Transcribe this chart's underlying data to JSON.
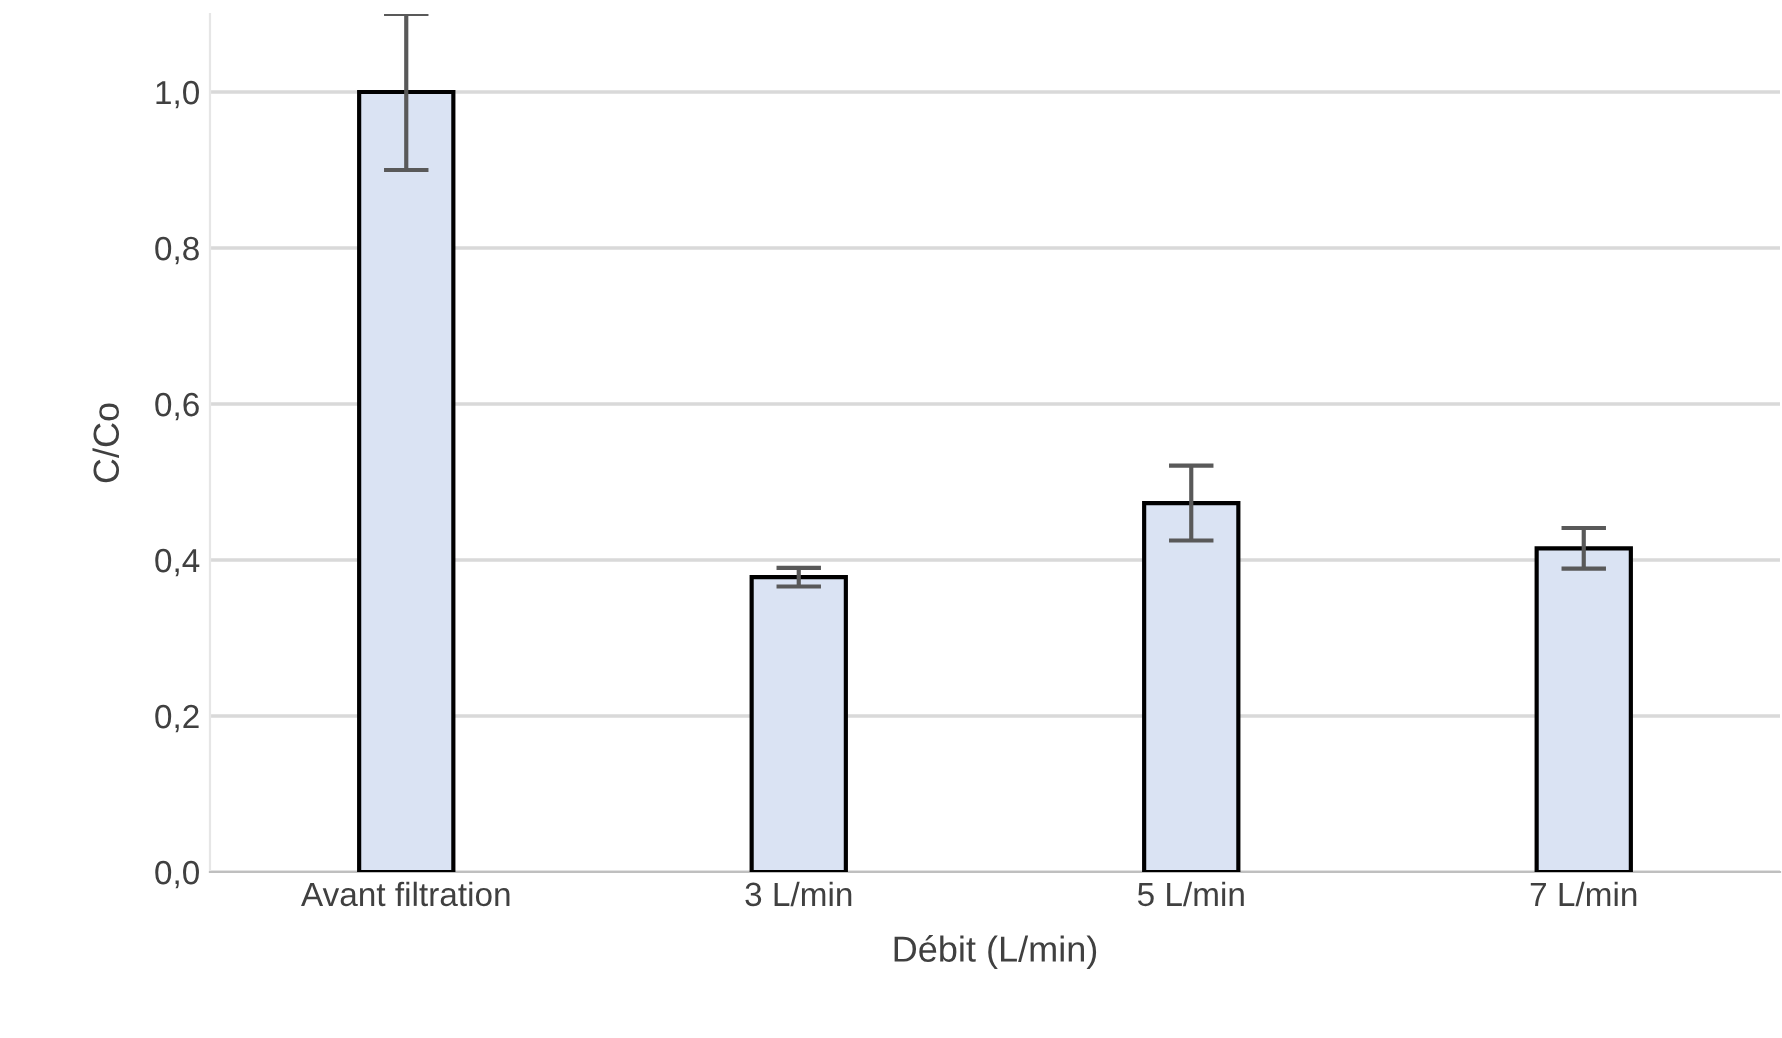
{
  "chart_data": {
    "type": "bar",
    "xlabel": "Débit (L/min)",
    "ylabel": "C/Co",
    "categories": [
      "Avant filtration",
      "3 L/min",
      "5 L/min",
      "7 L/min"
    ],
    "values": [
      1.0,
      0.378,
      0.473,
      0.415
    ],
    "errors": [
      0.1,
      0.012,
      0.048,
      0.026
    ],
    "color": "#dae3f3",
    "ylim": [
      0,
      1.1
    ],
    "yticks": [
      {
        "value": 0,
        "label": "0,0"
      },
      {
        "value": 0.2,
        "label": "0,2"
      },
      {
        "value": 0.4,
        "label": "0,4"
      },
      {
        "value": 0.6,
        "label": "0,6"
      },
      {
        "value": 0.8,
        "label": "0,8"
      },
      {
        "value": 1.0,
        "label": "1,0"
      }
    ],
    "grid": "y"
  }
}
